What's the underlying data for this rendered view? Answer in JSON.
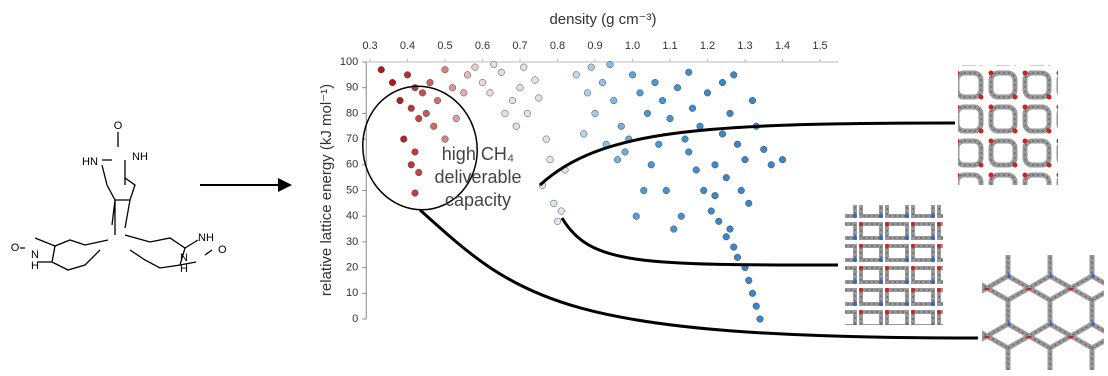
{
  "chart_data": {
    "type": "scatter",
    "xlabel": "density (g cm⁻³)",
    "ylabel": "relative lattice energy (kJ mol⁻¹)",
    "annotation": [
      "high CH₄",
      "deliverable",
      "capacity"
    ],
    "xlim": [
      0.29,
      1.55
    ],
    "xticks": [
      {
        "value": 0.3,
        "label": "0.3"
      },
      {
        "value": 0.4,
        "label": "0.4"
      },
      {
        "value": 0.5,
        "label": "0.5"
      },
      {
        "value": 0.6,
        "label": "0.6"
      },
      {
        "value": 0.7,
        "label": "0.7"
      },
      {
        "value": 0.8,
        "label": "0.8"
      },
      {
        "value": 0.9,
        "label": "0.9"
      },
      {
        "value": 1.0,
        "label": "1.0"
      },
      {
        "value": 1.1,
        "label": "1.1"
      },
      {
        "value": 1.2,
        "label": "1.2"
      },
      {
        "value": 1.3,
        "label": "1.3"
      },
      {
        "value": 1.4,
        "label": "1.4"
      },
      {
        "value": 1.5,
        "label": "1.5"
      }
    ],
    "ylim": [
      0,
      100
    ],
    "yticks": [
      0,
      10,
      20,
      30,
      40,
      50,
      60,
      70,
      80,
      90,
      100
    ],
    "colors": [
      "#b3161b",
      "#f2d6d6",
      "#dbe9f3",
      "#4b9ad6",
      "#3a86c6"
    ],
    "x": [
      0.4,
      0.42,
      0.44,
      0.46,
      0.48,
      0.5,
      0.52,
      0.41,
      0.43,
      0.45,
      0.47,
      0.39,
      0.42,
      0.41,
      0.43,
      0.42,
      0.38,
      0.36,
      0.33,
      0.55,
      0.53,
      0.56,
      0.58,
      0.5,
      0.6,
      0.62,
      0.65,
      0.68,
      0.7,
      0.72,
      0.75,
      0.77,
      0.78,
      0.76,
      0.79,
      0.8,
      0.74,
      0.66,
      0.63,
      0.71,
      0.69,
      0.82,
      0.81,
      0.85,
      0.88,
      0.9,
      0.92,
      0.95,
      0.97,
      0.99,
      1.0,
      1.02,
      1.05,
      1.04,
      1.06,
      0.93,
      0.87,
      0.96,
      1.01,
      0.98,
      0.89,
      0.94,
      1.08,
      1.1,
      1.12,
      1.14,
      1.15,
      1.16,
      1.18,
      1.2,
      1.22,
      1.24,
      1.25,
      1.26,
      1.28,
      1.29,
      1.3,
      1.31,
      1.32,
      1.33,
      1.35,
      1.37,
      1.4,
      1.19,
      1.21,
      1.23,
      1.25,
      1.27,
      1.28,
      1.3,
      1.31,
      1.32,
      1.33,
      1.34,
      1.26,
      1.22,
      1.17,
      1.13,
      1.11,
      1.09,
      1.07,
      1.24,
      1.15,
      1.27,
      1.03
    ],
    "values": [
      95,
      90,
      88,
      92,
      85,
      97,
      90,
      82,
      78,
      80,
      75,
      70,
      65,
      60,
      57,
      49,
      85,
      92,
      97,
      88,
      78,
      95,
      98,
      70,
      92,
      88,
      96,
      85,
      90,
      80,
      86,
      70,
      62,
      52,
      45,
      38,
      93,
      80,
      99,
      98,
      75,
      58,
      42,
      95,
      88,
      80,
      92,
      85,
      75,
      70,
      95,
      88,
      60,
      80,
      92,
      68,
      72,
      62,
      40,
      65,
      98,
      99,
      85,
      78,
      90,
      70,
      65,
      82,
      75,
      88,
      60,
      72,
      55,
      80,
      68,
      50,
      62,
      45,
      85,
      75,
      66,
      60,
      62,
      50,
      42,
      38,
      32,
      28,
      24,
      20,
      15,
      10,
      5,
      0,
      35,
      48,
      58,
      40,
      35,
      50,
      68,
      92,
      96,
      95,
      50
    ]
  },
  "molecule": {
    "labels": [
      "O",
      "NH",
      "HN",
      "O",
      "N",
      "H",
      "NH",
      "N",
      "H",
      "O"
    ]
  }
}
